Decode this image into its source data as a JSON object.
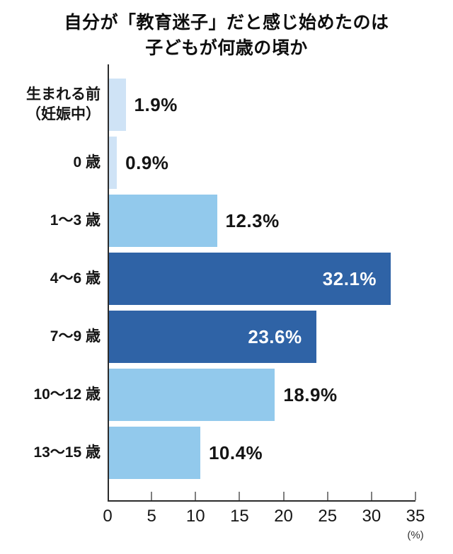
{
  "title": {
    "line1": "自分が「教育迷子」だと感じ始めたのは",
    "line2": "子どもが何歳の頃か"
  },
  "chart_data": {
    "type": "bar",
    "orientation": "horizontal",
    "title": "自分が「教育迷子」だと感じ始めたのは子どもが何歳の頃か",
    "categories": [
      "生まれる前\n（妊娠中）",
      "0 歳",
      "1～3 歳",
      "4～6 歳",
      "7～9 歳",
      "10～12 歳",
      "13～15 歳"
    ],
    "values": [
      1.9,
      0.9,
      12.3,
      32.1,
      23.6,
      18.9,
      10.4
    ],
    "value_labels": [
      "1.9%",
      "0.9%",
      "12.3%",
      "32.1%",
      "23.6%",
      "18.9%",
      "10.4%"
    ],
    "bar_colors": [
      "#cfe3f6",
      "#cfe3f6",
      "#92c9ec",
      "#2f63a6",
      "#2f63a6",
      "#92c9ec",
      "#92c9ec"
    ],
    "value_label_positions": [
      "outside",
      "outside",
      "outside",
      "inside",
      "inside",
      "outside",
      "outside"
    ],
    "x_ticks": [
      "0",
      "5",
      "10",
      "15",
      "20",
      "25",
      "30",
      "35"
    ],
    "x_tick_values": [
      0,
      5,
      10,
      15,
      20,
      25,
      30,
      35
    ],
    "xlim": [
      0,
      35
    ],
    "x_unit_label": "(%)",
    "grid": false,
    "legend": false,
    "colors": {
      "pale_blue": "#cfe3f6",
      "light_blue": "#92c9ec",
      "dark_blue": "#2f63a6",
      "axis": "#2b2b2b",
      "tick": "#7f7f7f",
      "text": "#141414",
      "value_label_inside": "#ffffff"
    }
  }
}
